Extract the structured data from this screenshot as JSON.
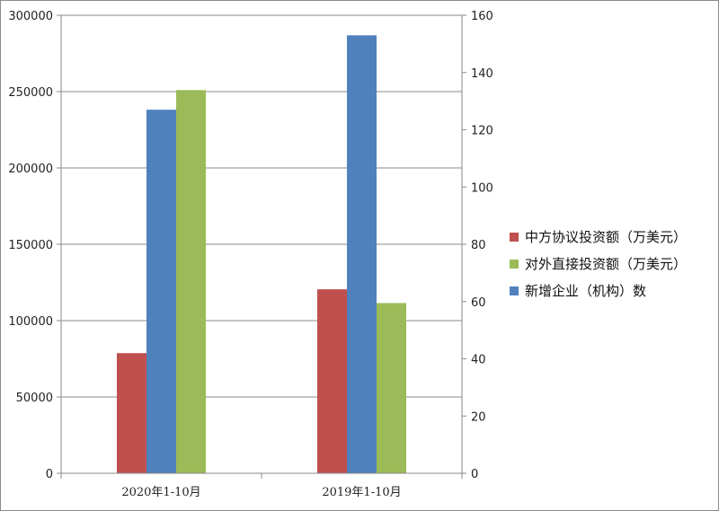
{
  "chart_data": {
    "type": "bar",
    "categories": [
      "2020年1-10月",
      "2019年1-10月"
    ],
    "series": [
      {
        "name": "中方协议投资额（万美元）",
        "axis": "left",
        "color": "#c0504d",
        "values": [
          78700,
          120500
        ]
      },
      {
        "name": "新增企业（机构）数",
        "axis": "right",
        "color": "#4f81bd",
        "values": [
          127,
          153
        ]
      },
      {
        "name": "对外直接投资额（万美元）",
        "axis": "left",
        "color": "#9bbb59",
        "values": [
          251000,
          111500
        ]
      }
    ],
    "legend_order": [
      0,
      2,
      1
    ],
    "y_left": {
      "min": 0,
      "max": 300000,
      "ticks": [
        0,
        50000,
        100000,
        150000,
        200000,
        250000,
        300000
      ]
    },
    "y_right": {
      "min": 0,
      "max": 160,
      "ticks": [
        0,
        20,
        40,
        60,
        80,
        100,
        120,
        140,
        160
      ]
    },
    "grid": true,
    "legend_position": "right"
  }
}
